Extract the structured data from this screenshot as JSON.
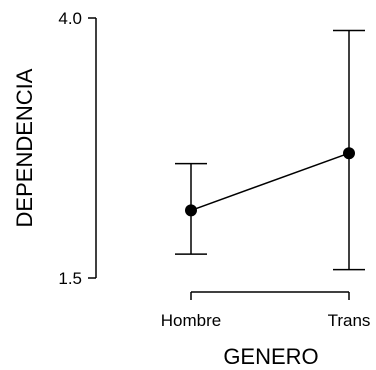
{
  "chart_data": {
    "type": "line",
    "title": "",
    "xlabel": "GENERO",
    "ylabel": "DEPENDENCIA",
    "categories": [
      "Hombre",
      "Trans"
    ],
    "series": [
      {
        "values": [
          2.15,
          2.7
        ],
        "error_low": [
          1.73,
          1.58
        ],
        "error_high": [
          2.6,
          3.88
        ]
      }
    ],
    "ylim": [
      1.5,
      4.0
    ],
    "yticks": [
      "1.5",
      "4.0"
    ],
    "grid": false,
    "legend": "none"
  }
}
